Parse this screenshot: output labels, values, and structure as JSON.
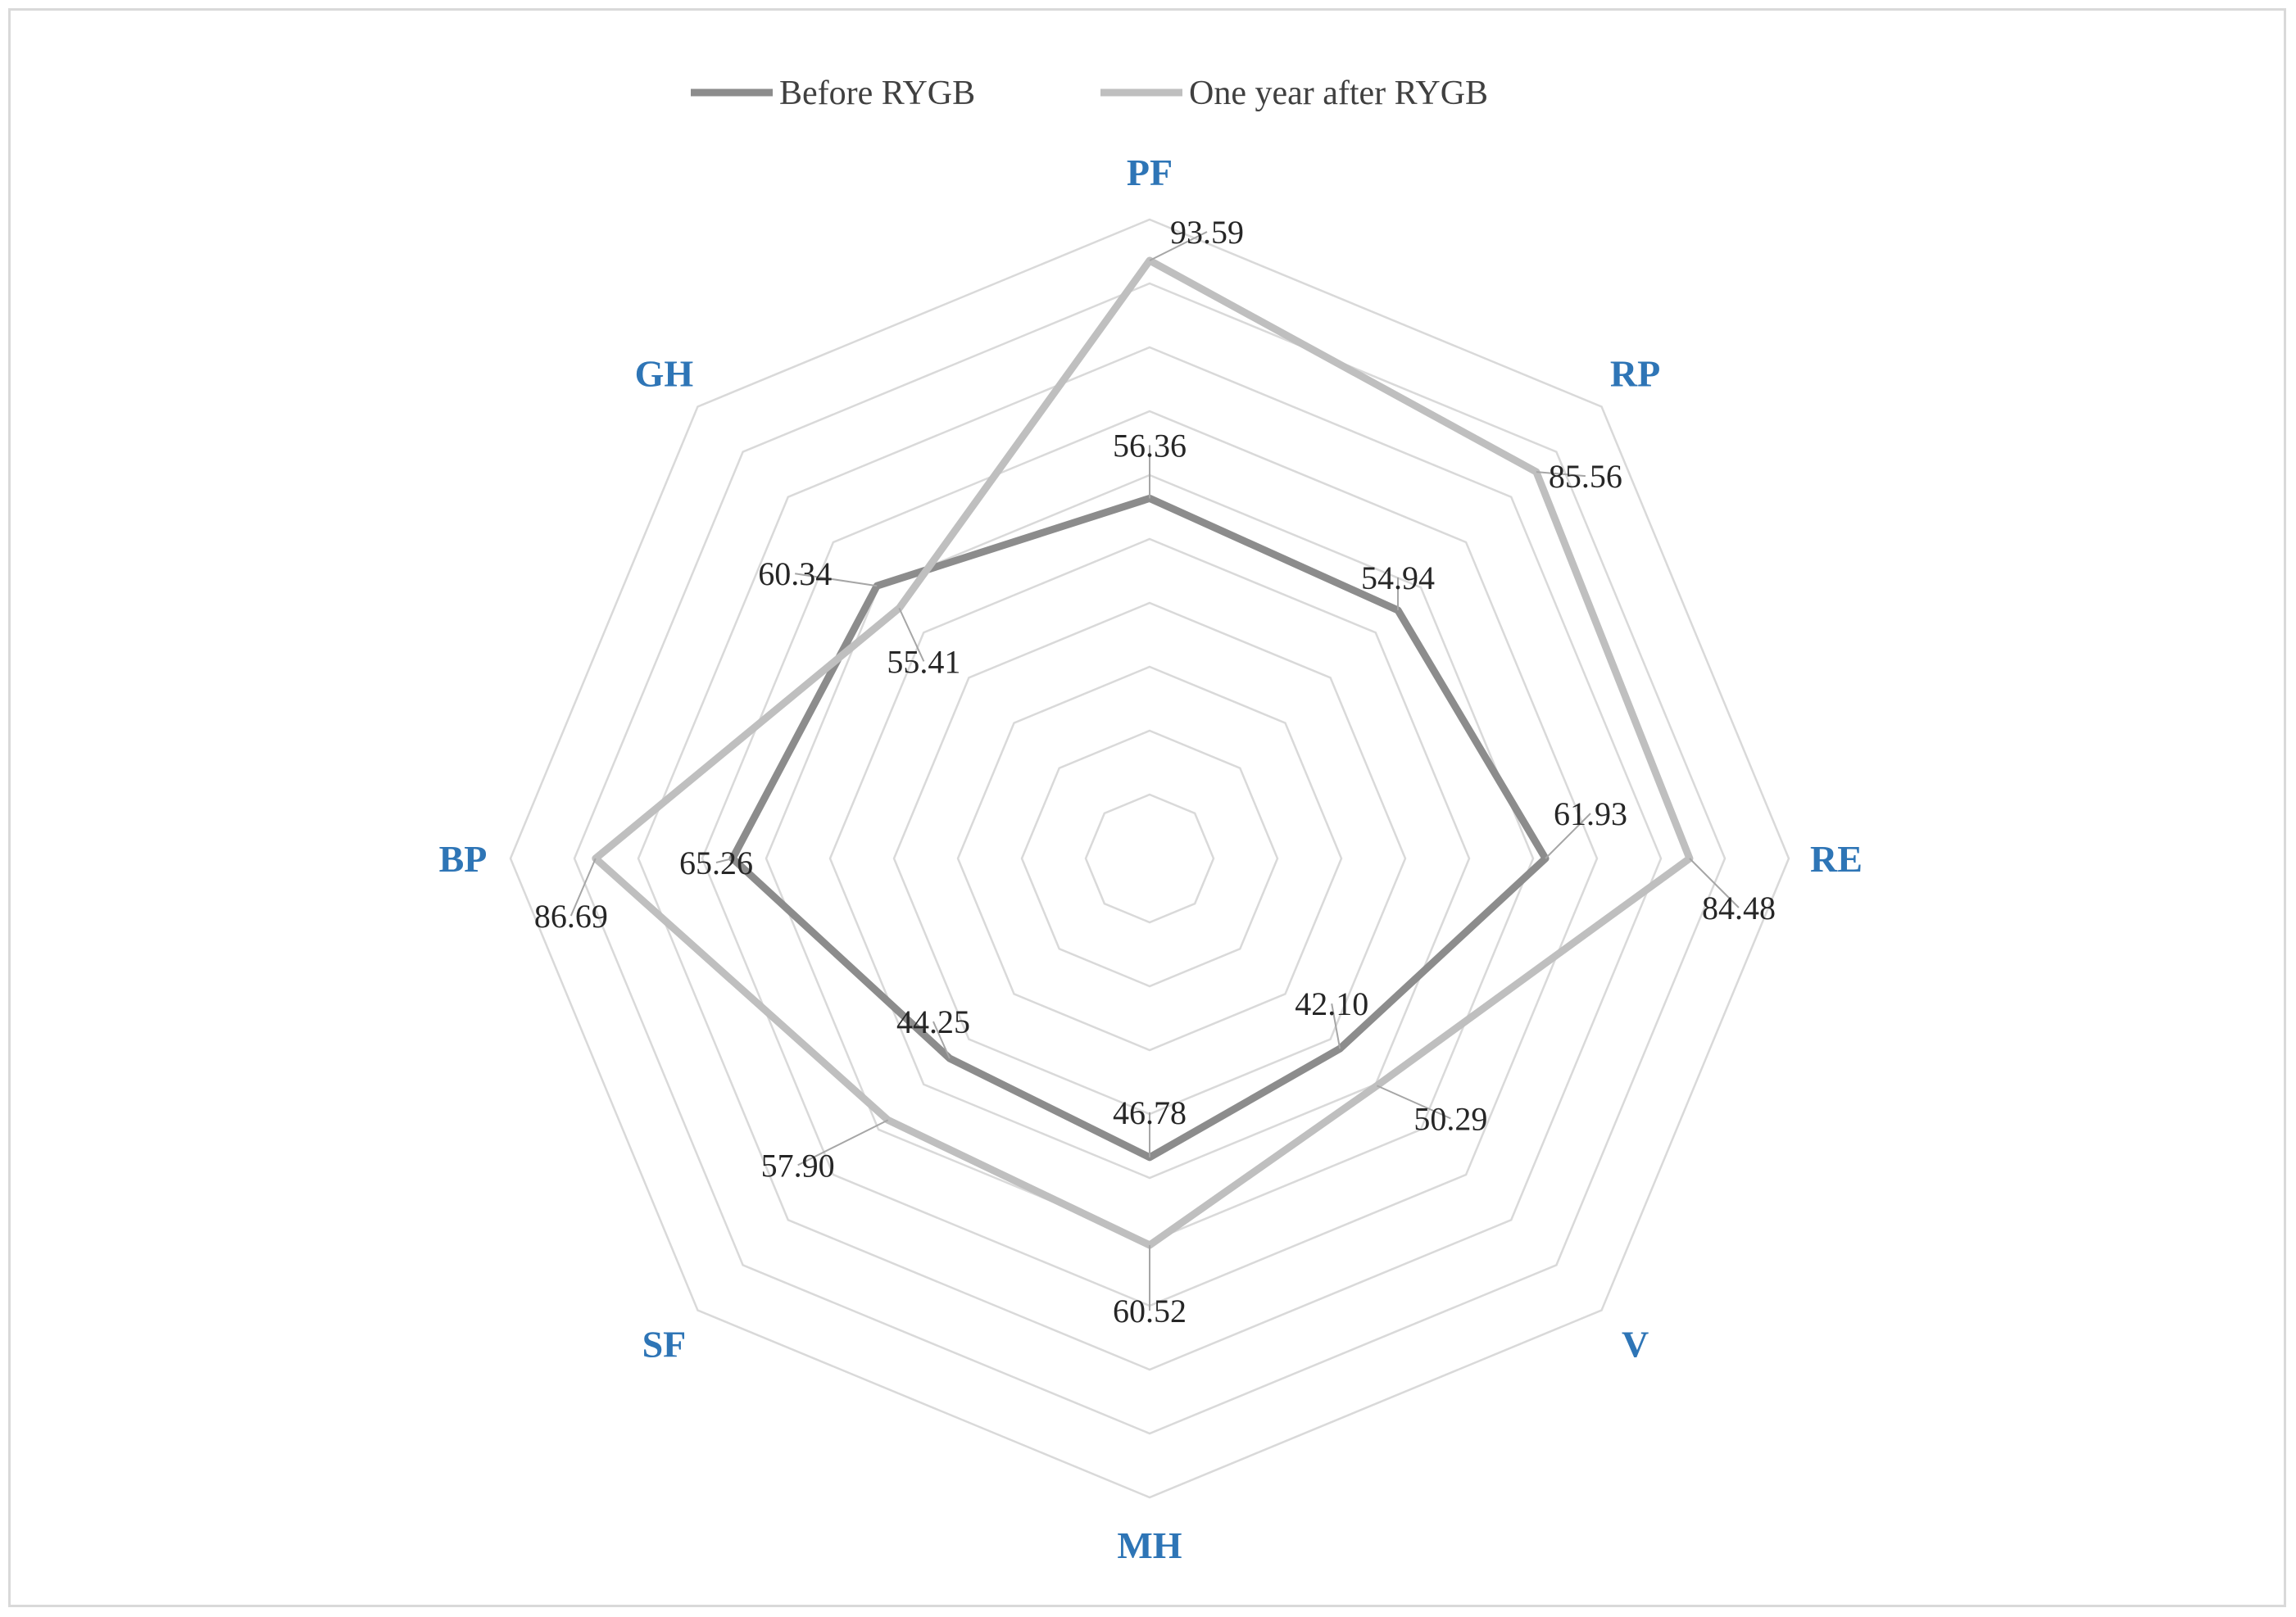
{
  "chart_data": {
    "type": "radar",
    "axes": [
      "PF",
      "RP",
      "RE",
      "V",
      "MH",
      "SF",
      "BP",
      "GH"
    ],
    "series": [
      {
        "name": "Before RYGB",
        "values": [
          56.36,
          54.94,
          61.93,
          42.1,
          46.78,
          44.25,
          65.26,
          60.34
        ],
        "labels": [
          "56.36",
          "54.94",
          "61.93",
          "42.10",
          "46.78",
          "44.25",
          "65.26",
          "60.34"
        ],
        "color": "#8c8c8c"
      },
      {
        "name": "One year after RYGB",
        "values": [
          93.59,
          85.56,
          84.48,
          50.29,
          60.52,
          57.9,
          86.69,
          55.41
        ],
        "labels": [
          "93.59",
          "85.56",
          "84.48",
          "50.29",
          "60.52",
          "57.90",
          "86.69",
          "55.41"
        ],
        "color": "#bfbfbf"
      }
    ],
    "rlim": [
      0,
      100
    ],
    "grid": true,
    "legend": "top"
  }
}
